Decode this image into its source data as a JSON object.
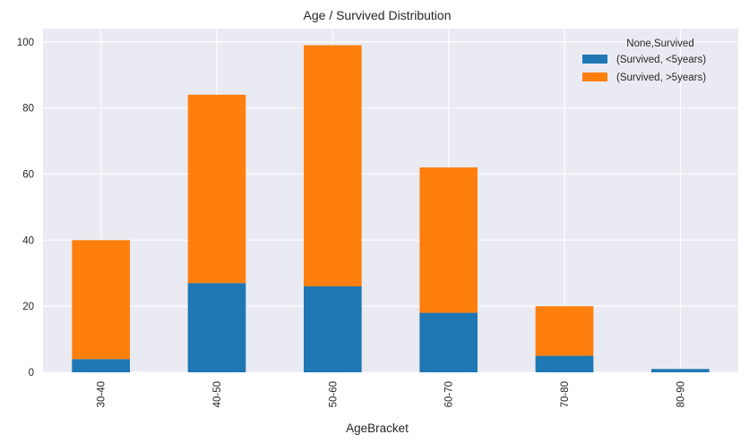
{
  "chart_data": {
    "type": "bar",
    "stacked": true,
    "title": "Age / Survived Distribution",
    "xlabel": "AgeBracket",
    "ylabel": "",
    "categories": [
      "30-40",
      "40-50",
      "50-60",
      "60-70",
      "70-80",
      "80-90"
    ],
    "series": [
      {
        "name": "(Survived, <5years)",
        "values": [
          4,
          27,
          26,
          18,
          5,
          1
        ],
        "color": "#1f77b4"
      },
      {
        "name": "(Survived, >5years)",
        "values": [
          36,
          57,
          73,
          44,
          15,
          0
        ],
        "color": "#ff7f0e"
      }
    ],
    "ylim": [
      0,
      104
    ],
    "yticks": [
      0,
      20,
      40,
      60,
      80,
      100
    ],
    "grid": true,
    "legend": {
      "title": "None,Survived",
      "placement": "top-right"
    },
    "colors": {
      "background": "#eaeaf2",
      "grid": "#ffffff"
    }
  }
}
